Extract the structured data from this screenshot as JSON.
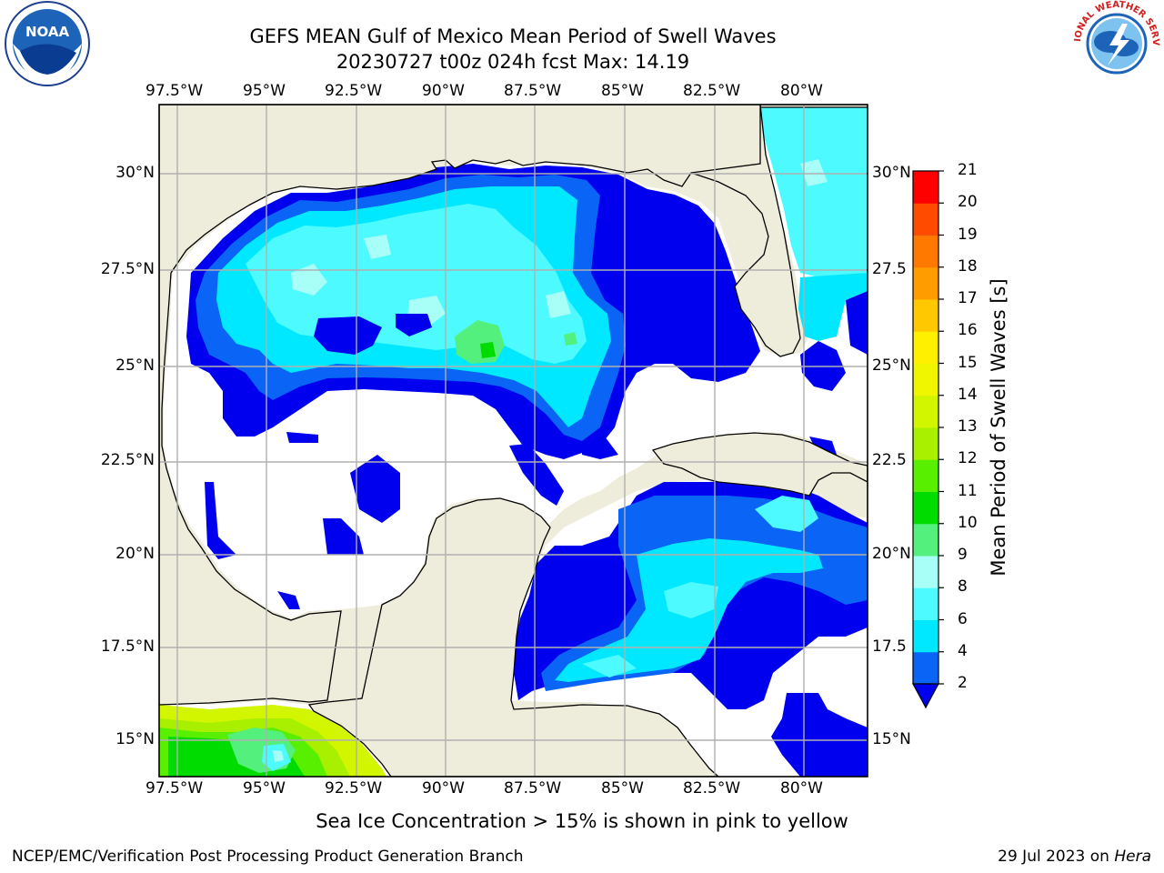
{
  "title_line1": "GEFS MEAN Gulf of Mexico Mean Period of Swell Waves",
  "title_line2": "20230727 t00z 024h fcst   Max: 14.19",
  "lon_labels": [
    "97.5°W",
    "95°W",
    "92.5°W",
    "90°W",
    "87.5°W",
    "85°W",
    "82.5°W",
    "80°W"
  ],
  "lat_labels_left": [
    "30°N",
    "27.5°N",
    "25°N",
    "22.5°N",
    "20°N",
    "17.5°N",
    "15°N"
  ],
  "lat_labels_right": [
    "30°N",
    "27.5",
    "25°N",
    "22.5",
    "20°N",
    "17.5",
    "15°N"
  ],
  "colorbar": {
    "label": "Mean Period of Swell Waves [s]",
    "ticks": [
      "2",
      "4",
      "6",
      "8",
      "9",
      "10",
      "11",
      "12",
      "13",
      "14",
      "15",
      "16",
      "17",
      "18",
      "19",
      "20",
      "21"
    ],
    "colors": [
      "#0a64f5",
      "#00e8ff",
      "#4cfaff",
      "#a8fff8",
      "#53f07e",
      "#00dc00",
      "#58f000",
      "#a8f000",
      "#d2f500",
      "#f0f500",
      "#fff000",
      "#ffc800",
      "#ff9c00",
      "#ff7800",
      "#ff4b00",
      "#ff0000"
    ],
    "under_color": "#0000ee"
  },
  "colors": {
    "land": "#eeeddc",
    "ocean_low": "#ffffff",
    "grid": "#b0b0b0"
  },
  "footnote": "Sea Ice Concentration > 15% is shown in pink to yellow",
  "credit_left": "NCEP/EMC/Verification Post Processing Product Generation Branch",
  "credit_right_date": "29 Jul 2023 on",
  "credit_right_host": "Hera",
  "logos": {
    "noaa_text": "NOAA",
    "nws_text": "NATIONAL WEATHER SERVICE"
  }
}
